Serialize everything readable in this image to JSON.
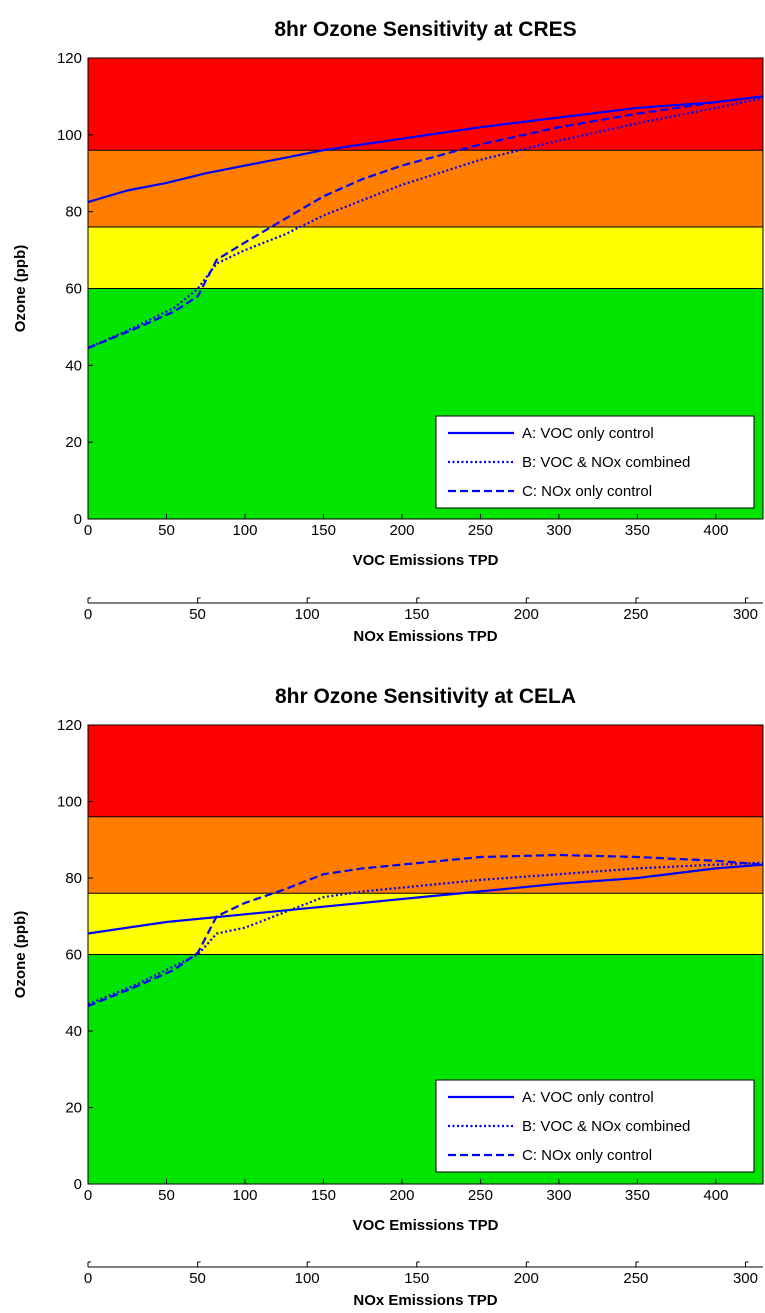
{
  "chart_data": [
    {
      "type": "line",
      "title": "8hr Ozone Sensitivity at CRES",
      "xlabel": "VOC Emissions TPD",
      "x2label": "NOx Emissions TPD",
      "ylabel": "Ozone (ppb)",
      "xlim": [
        0,
        430
      ],
      "x2lim": [
        0,
        308
      ],
      "ylim": [
        0,
        120
      ],
      "xticks": [
        0,
        50,
        100,
        150,
        200,
        250,
        300,
        350,
        400
      ],
      "x2ticks": [
        0,
        50,
        100,
        150,
        200,
        250,
        300
      ],
      "yticks": [
        0,
        20,
        40,
        60,
        80,
        100,
        120
      ],
      "grid": false,
      "legend_position": "bottom-right",
      "bands": [
        {
          "from": 0,
          "to": 60,
          "color": "#00e400"
        },
        {
          "from": 60,
          "to": 76,
          "color": "#ffff00"
        },
        {
          "from": 76,
          "to": 96,
          "color": "#ff7e00"
        },
        {
          "from": 96,
          "to": 120,
          "color": "#ff0000"
        }
      ],
      "series": [
        {
          "name": "A: VOC only control",
          "style": "solid",
          "color": "#0000ff",
          "x": [
            0,
            25,
            50,
            75,
            100,
            125,
            150,
            175,
            200,
            250,
            300,
            350,
            400,
            430
          ],
          "y": [
            82.5,
            85.5,
            87.5,
            90,
            92,
            94,
            96,
            97.5,
            99,
            102,
            104.5,
            107,
            108.5,
            110
          ]
        },
        {
          "name": "B: VOC & NOx combined",
          "style": "dotted",
          "color": "#0000ff",
          "x": [
            0,
            30,
            55,
            70,
            82,
            100,
            125,
            150,
            175,
            200,
            250,
            300,
            350,
            400,
            430
          ],
          "y": [
            44.5,
            50,
            55,
            60,
            66.5,
            70,
            74,
            79,
            83,
            87,
            93.5,
            98.5,
            103,
            107,
            109.5
          ]
        },
        {
          "name": "C: NOx only control",
          "style": "dashed",
          "color": "#0000ff",
          "x": [
            0,
            30,
            55,
            70,
            82,
            100,
            125,
            150,
            175,
            200,
            250,
            300,
            350,
            400,
            430
          ],
          "y": [
            44.5,
            49.5,
            54,
            58,
            67.5,
            72,
            78,
            84,
            88.5,
            92,
            97.5,
            102,
            105.5,
            108.5,
            110
          ]
        }
      ]
    },
    {
      "type": "line",
      "title": "8hr Ozone Sensitivity at CELA",
      "xlabel": "VOC Emissions TPD",
      "x2label": "NOx Emissions TPD",
      "ylabel": "Ozone (ppb)",
      "xlim": [
        0,
        430
      ],
      "x2lim": [
        0,
        308
      ],
      "ylim": [
        0,
        120
      ],
      "xticks": [
        0,
        50,
        100,
        150,
        200,
        250,
        300,
        350,
        400
      ],
      "x2ticks": [
        0,
        50,
        100,
        150,
        200,
        250,
        300
      ],
      "yticks": [
        0,
        20,
        40,
        60,
        80,
        100,
        120
      ],
      "grid": false,
      "legend_position": "bottom-right",
      "bands": [
        {
          "from": 0,
          "to": 60,
          "color": "#00e400"
        },
        {
          "from": 60,
          "to": 76,
          "color": "#ffff00"
        },
        {
          "from": 76,
          "to": 96,
          "color": "#ff7e00"
        },
        {
          "from": 96,
          "to": 120,
          "color": "#ff0000"
        }
      ],
      "series": [
        {
          "name": "A: VOC only control",
          "style": "solid",
          "color": "#0000ff",
          "x": [
            0,
            50,
            100,
            150,
            200,
            250,
            300,
            350,
            400,
            430
          ],
          "y": [
            65.5,
            68.5,
            70.5,
            72.5,
            74.5,
            76.5,
            78.5,
            80,
            82.5,
            83.5
          ]
        },
        {
          "name": "B: VOC & NOx combined",
          "style": "dotted",
          "color": "#0000ff",
          "x": [
            0,
            30,
            55,
            70,
            82,
            100,
            125,
            150,
            175,
            200,
            250,
            300,
            350,
            400,
            430
          ],
          "y": [
            47,
            52,
            57,
            60,
            65.5,
            67,
            71,
            75,
            76.5,
            77.5,
            79.5,
            81,
            82.5,
            83.5,
            84
          ]
        },
        {
          "name": "C: NOx only control",
          "style": "dashed",
          "color": "#0000ff",
          "x": [
            0,
            30,
            55,
            70,
            82,
            100,
            125,
            150,
            175,
            200,
            250,
            300,
            350,
            400,
            430
          ],
          "y": [
            46.5,
            51.5,
            56,
            60.5,
            70,
            73.5,
            77,
            81,
            82.5,
            83.5,
            85.5,
            86,
            85.5,
            84.5,
            83.5
          ]
        }
      ]
    }
  ]
}
